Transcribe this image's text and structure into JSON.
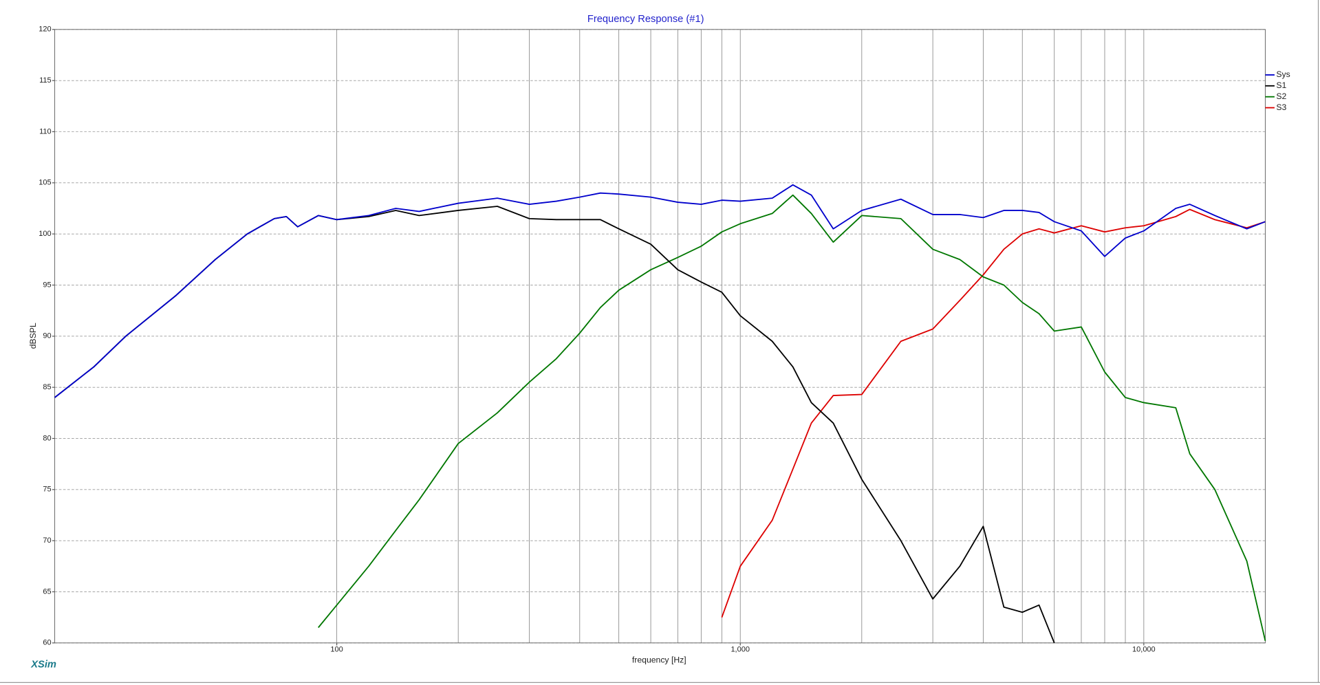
{
  "chart_data": {
    "type": "line",
    "title": "Frequency Response (#1)",
    "x_label": "frequency [Hz]",
    "y_label": "dBSPL",
    "watermark": "XSim",
    "xscale": "log",
    "xlim": [
      20,
      20000
    ],
    "ylim": [
      60,
      120
    ],
    "yticks": [
      60,
      65,
      70,
      75,
      80,
      85,
      90,
      95,
      100,
      105,
      110,
      115,
      120
    ],
    "xticks": [
      100,
      {
        "value": 1000,
        "label": "1,000"
      },
      {
        "value": 10000,
        "label": "10,000"
      }
    ],
    "xgrid_minor": [
      200,
      300,
      400,
      500,
      600,
      700,
      800,
      900,
      2000,
      3000,
      4000,
      5000,
      6000,
      7000,
      8000,
      9000
    ],
    "grid": true,
    "legend": "right",
    "x": [
      20,
      25,
      30,
      40,
      50,
      60,
      70,
      75,
      80,
      90,
      100,
      120,
      140,
      160,
      200,
      250,
      300,
      350,
      400,
      450,
      500,
      600,
      700,
      800,
      900,
      1000,
      1200,
      1350,
      1500,
      1700,
      2000,
      2500,
      3000,
      3500,
      4000,
      4500,
      5000,
      5500,
      6000,
      7000,
      8000,
      9000,
      10000,
      12000,
      13000,
      15000,
      18000,
      20000
    ],
    "series": [
      {
        "name": "Sys",
        "color": "#0000cc",
        "values": [
          84,
          87,
          90,
          94,
          97.5,
          100,
          101.5,
          101.7,
          100.7,
          101.8,
          101.4,
          101.8,
          102.5,
          102.2,
          103,
          103.5,
          102.9,
          103.2,
          103.6,
          104,
          103.9,
          103.6,
          103.1,
          102.9,
          103.3,
          103.2,
          103.5,
          104.8,
          103.8,
          100.5,
          102.3,
          103.4,
          101.9,
          101.9,
          101.6,
          102.3,
          102.3,
          102.1,
          101.2,
          100.3,
          97.8,
          99.6,
          100.3,
          102.5,
          102.9,
          101.8,
          100.5,
          101.2
        ]
      },
      {
        "name": "S1",
        "color": "#000000",
        "values": [
          84,
          87,
          90,
          94,
          97.5,
          100,
          101.5,
          101.7,
          100.7,
          101.8,
          101.4,
          101.7,
          102.3,
          101.8,
          102.3,
          102.7,
          101.5,
          101.4,
          101.4,
          101.4,
          100.5,
          99,
          96.5,
          95.3,
          94.3,
          92,
          89.5,
          87,
          83.5,
          81.5,
          76,
          70,
          64.3,
          67.5,
          71.4,
          63.5,
          63,
          63.7,
          60,
          null,
          null,
          null,
          null,
          null,
          null,
          null,
          null,
          null
        ]
      },
      {
        "name": "S2",
        "color": "#007700",
        "values": [
          null,
          null,
          null,
          null,
          null,
          null,
          null,
          null,
          null,
          61.5,
          63.7,
          67.5,
          71,
          74,
          79.5,
          82.5,
          85.5,
          87.8,
          90.3,
          92.8,
          94.5,
          96.5,
          97.7,
          98.8,
          100.2,
          101,
          102,
          103.8,
          102,
          99.2,
          101.8,
          101.5,
          98.5,
          97.5,
          95.8,
          95,
          93.3,
          92.2,
          90.5,
          90.9,
          86.5,
          84,
          83.5,
          83,
          78.5,
          75,
          68,
          60.2
        ]
      },
      {
        "name": "S3",
        "color": "#dd0000",
        "values": [
          null,
          null,
          null,
          null,
          null,
          null,
          null,
          null,
          null,
          null,
          null,
          null,
          null,
          null,
          null,
          null,
          null,
          null,
          null,
          null,
          null,
          null,
          null,
          null,
          62.5,
          67.5,
          72,
          77,
          81.5,
          84.2,
          84.3,
          89.5,
          90.7,
          93.5,
          96,
          98.5,
          100,
          100.5,
          100.1,
          100.8,
          100.2,
          100.6,
          100.8,
          101.7,
          102.4,
          101.4,
          100.6,
          101.2
        ]
      }
    ]
  }
}
